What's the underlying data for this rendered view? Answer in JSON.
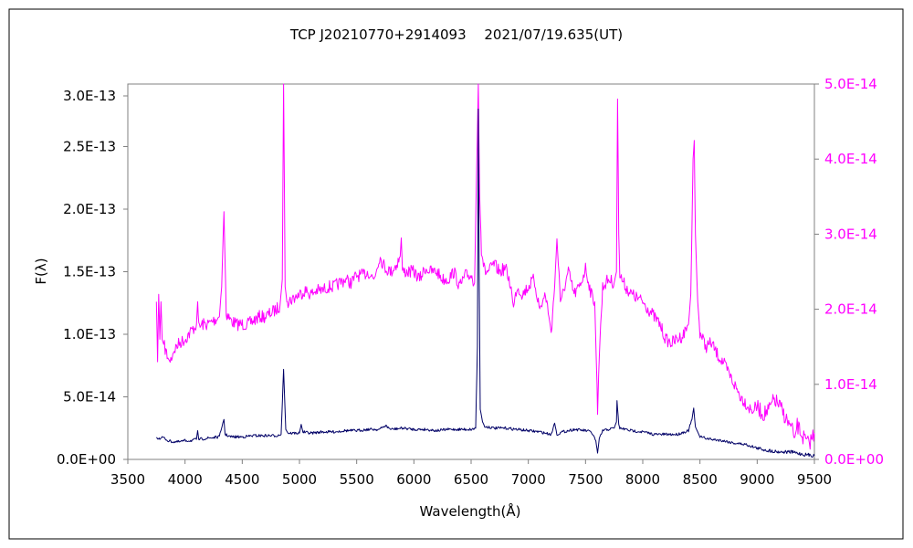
{
  "chart_data": {
    "type": "line",
    "title": "TCP J20210770+2914093　 2021/07/19.635(UT)",
    "xlabel": "Wavelength(Å)",
    "ylabel": "F(λ)",
    "xlim": [
      3500,
      9500
    ],
    "xticks": [
      3500,
      4000,
      4500,
      5000,
      5500,
      6000,
      6500,
      7000,
      7500,
      8000,
      8500,
      9000,
      9500
    ],
    "ylim_left": [
      0,
      3e-13
    ],
    "yticks_left": [
      "0.0E+00",
      "5.0E-14",
      "1.0E-13",
      "1.5E-13",
      "2.0E-13",
      "2.5E-13",
      "3.0E-13"
    ],
    "ylim_right": [
      0,
      5e-14
    ],
    "yticks_right": [
      "0.0E+00",
      "1.0E-14",
      "2.0E-14",
      "3.0E-14",
      "4.0E-14",
      "5.0E-14"
    ],
    "right_axis_color": "#ff00ff",
    "grid": false,
    "legend": "none",
    "series": [
      {
        "axis": "left",
        "color": "#000066",
        "x": [
          3750,
          3780,
          3800,
          3850,
          3900,
          3950,
          4000,
          4050,
          4100,
          4110,
          4120,
          4200,
          4300,
          4330,
          4340,
          4350,
          4400,
          4500,
          4600,
          4700,
          4800,
          4840,
          4861,
          4880,
          4900,
          5000,
          5015,
          5030,
          5100,
          5200,
          5300,
          5400,
          5500,
          5600,
          5700,
          5750,
          5800,
          5900,
          6000,
          6100,
          6200,
          6300,
          6400,
          6500,
          6540,
          6555,
          6563,
          6570,
          6580,
          6600,
          6620,
          6650,
          6700,
          6800,
          6900,
          7000,
          7100,
          7200,
          7230,
          7250,
          7300,
          7400,
          7500,
          7550,
          7590,
          7605,
          7620,
          7650,
          7700,
          7750,
          7770,
          7775,
          7790,
          7800,
          7850,
          7900,
          8000,
          8100,
          8200,
          8300,
          8400,
          8430,
          8445,
          8460,
          8480,
          8500,
          8600,
          8700,
          8800,
          8900,
          9000,
          9100,
          9200,
          9300,
          9400,
          9500
        ],
        "values": [
          1.8e-14,
          1.6e-14,
          1.8e-14,
          1.5e-14,
          1.4e-14,
          1.4e-14,
          1.5e-14,
          1.5e-14,
          1.6e-14,
          2.3e-14,
          1.6e-14,
          1.7e-14,
          1.8e-14,
          2.9e-14,
          3.2e-14,
          2e-14,
          1.8e-14,
          1.8e-14,
          1.9e-14,
          1.9e-14,
          1.9e-14,
          2e-14,
          7.2e-14,
          2.4e-14,
          2.1e-14,
          2.1e-14,
          2.8e-14,
          2.2e-14,
          2.1e-14,
          2.2e-14,
          2.2e-14,
          2.3e-14,
          2.3e-14,
          2.4e-14,
          2.4e-14,
          2.7e-14,
          2.4e-14,
          2.5e-14,
          2.4e-14,
          2.4e-14,
          2.3e-14,
          2.4e-14,
          2.4e-14,
          2.4e-14,
          2.5e-14,
          9e-14,
          2.8e-13,
          1.5e-13,
          4e-14,
          3e-14,
          2.6e-14,
          2.6e-14,
          2.5e-14,
          2.5e-14,
          2.4e-14,
          2.3e-14,
          2.2e-14,
          2e-14,
          2.9e-14,
          2e-14,
          2.2e-14,
          2.4e-14,
          2.3e-14,
          2.2e-14,
          1.5e-14,
          5e-15,
          1.6e-14,
          2.3e-14,
          2.4e-14,
          2.5e-14,
          3e-14,
          4.7e-14,
          2.8e-14,
          2.5e-14,
          2.4e-14,
          2.3e-14,
          2.2e-14,
          2e-14,
          2e-14,
          2e-14,
          2.3e-14,
          3.2e-14,
          4.1e-14,
          2.6e-14,
          2.2e-14,
          1.8e-14,
          1.6e-14,
          1.5e-14,
          1.3e-14,
          1.2e-14,
          9e-15,
          7e-15,
          6e-15,
          6e-15,
          4e-15,
          3e-15
        ]
      },
      {
        "axis": "right",
        "color": "#ff00ff",
        "x": [
          3750,
          3760,
          3770,
          3780,
          3790,
          3800,
          3820,
          3850,
          3870,
          3900,
          3950,
          4000,
          4050,
          4100,
          4110,
          4120,
          4150,
          4200,
          4250,
          4300,
          4320,
          4340,
          4360,
          4400,
          4450,
          4500,
          4550,
          4600,
          4650,
          4700,
          4750,
          4800,
          4830,
          4850,
          4861,
          4875,
          4890,
          4900,
          4950,
          5000,
          5050,
          5100,
          5150,
          5200,
          5250,
          5300,
          5350,
          5400,
          5450,
          5500,
          5550,
          5600,
          5650,
          5700,
          5750,
          5800,
          5850,
          5880,
          5890,
          5900,
          5950,
          6000,
          6050,
          6100,
          6150,
          6200,
          6250,
          6300,
          6350,
          6400,
          6450,
          6500,
          6530,
          6550,
          6563,
          6575,
          6590,
          6620,
          6650,
          6700,
          6750,
          6800,
          6850,
          6870,
          6900,
          6950,
          7000,
          7050,
          7100,
          7150,
          7180,
          7200,
          7230,
          7250,
          7280,
          7300,
          7350,
          7400,
          7450,
          7500,
          7550,
          7580,
          7600,
          7605,
          7620,
          7650,
          7700,
          7750,
          7770,
          7780,
          7790,
          7800,
          7850,
          7900,
          7950,
          8000,
          8050,
          8100,
          8150,
          8200,
          8250,
          8300,
          8350,
          8400,
          8420,
          8440,
          8450,
          8460,
          8480,
          8500,
          8550,
          8600,
          8650,
          8700,
          8750,
          8800,
          8850,
          8900,
          8950,
          9000,
          9050,
          9100,
          9150,
          9200,
          9250,
          9300,
          9330,
          9350,
          9400,
          9450,
          9500
        ],
        "values": [
          2.1e-14,
          1.3e-14,
          2.2e-14,
          1.6e-14,
          2.1e-14,
          1.6e-14,
          1.5e-14,
          1.35e-14,
          1.3e-14,
          1.45e-14,
          1.55e-14,
          1.6e-14,
          1.7e-14,
          1.8e-14,
          2.1e-14,
          1.75e-14,
          1.8e-14,
          1.8e-14,
          1.85e-14,
          1.9e-14,
          2.3e-14,
          3.3e-14,
          1.95e-14,
          1.85e-14,
          1.8e-14,
          1.8e-14,
          1.8e-14,
          1.85e-14,
          1.9e-14,
          1.9e-14,
          1.95e-14,
          2e-14,
          2.05e-14,
          2.4e-14,
          5e-14,
          2.3e-14,
          2.1e-14,
          2.1e-14,
          2.15e-14,
          2.2e-14,
          2.25e-14,
          2.2e-14,
          2.25e-14,
          2.25e-14,
          2.3e-14,
          2.3e-14,
          2.35e-14,
          2.4e-14,
          2.35e-14,
          2.45e-14,
          2.45e-14,
          2.5e-14,
          2.4e-14,
          2.7e-14,
          2.55e-14,
          2.5e-14,
          2.6e-14,
          2.7e-14,
          2.95e-14,
          2.5e-14,
          2.5e-14,
          2.5e-14,
          2.4e-14,
          2.55e-14,
          2.5e-14,
          2.5e-14,
          2.4e-14,
          2.4e-14,
          2.5e-14,
          2.3e-14,
          2.45e-14,
          2.45e-14,
          2.35e-14,
          4e-14,
          5e-14,
          3.5e-14,
          2.8e-14,
          2.5e-14,
          2.5e-14,
          2.6e-14,
          2.5e-14,
          2.55e-14,
          2.3e-14,
          2e-14,
          2.3e-14,
          2.2e-14,
          2.3e-14,
          2.4e-14,
          2e-14,
          2.2e-14,
          1.9e-14,
          1.7e-14,
          2.3e-14,
          2.95e-14,
          2.1e-14,
          2.2e-14,
          2.5e-14,
          2.2e-14,
          2.3e-14,
          2.55e-14,
          2.2e-14,
          2.1e-14,
          1e-14,
          6e-15,
          1.4e-14,
          2.3e-14,
          2.4e-14,
          2.35e-14,
          2.5e-14,
          4.8e-14,
          3e-14,
          2.45e-14,
          2.3e-14,
          2.2e-14,
          2.15e-14,
          2.1e-14,
          2e-14,
          1.9e-14,
          1.8e-14,
          1.6e-14,
          1.55e-14,
          1.6e-14,
          1.65e-14,
          1.8e-14,
          2.2e-14,
          4e-14,
          4.25e-14,
          3e-14,
          2.1e-14,
          1.7e-14,
          1.5e-14,
          1.55e-14,
          1.4e-14,
          1.3e-14,
          1.15e-14,
          1e-14,
          8.5e-15,
          7.5e-15,
          6.5e-15,
          7e-15,
          6e-15,
          6.5e-15,
          8e-15,
          7e-15,
          5.5e-15,
          4e-15,
          3e-15,
          4.5e-15,
          3e-15,
          2e-15,
          3.5e-15
        ]
      }
    ]
  }
}
